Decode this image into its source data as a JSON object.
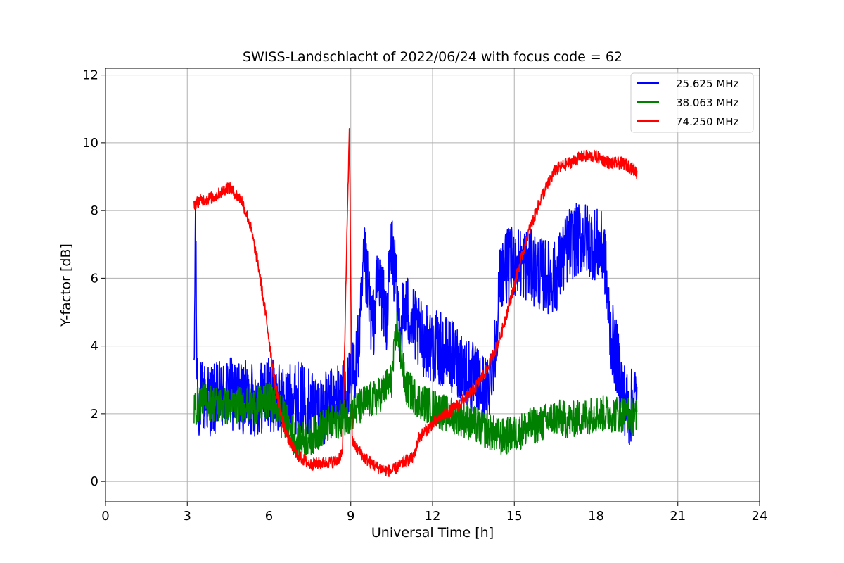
{
  "chart_data": {
    "type": "line",
    "title": "SWISS-Landschlacht of 2022/06/24 with focus code = 62",
    "xlabel": "Universal Time [h]",
    "ylabel": "Y-factor [dB]",
    "xlim": [
      0,
      24
    ],
    "ylim": [
      -0.6,
      12.2
    ],
    "xticks": [
      0,
      3,
      6,
      9,
      12,
      15,
      18,
      21,
      24
    ],
    "yticks": [
      0,
      2,
      4,
      6,
      8,
      10,
      12
    ],
    "xtick_labels": [
      "0",
      "3",
      "6",
      "9",
      "12",
      "15",
      "18",
      "21",
      "24"
    ],
    "ytick_labels": [
      "0",
      "2",
      "4",
      "6",
      "8",
      "10",
      "12"
    ],
    "grid": true,
    "legend_position": "top-right",
    "series": [
      {
        "name": "25.625 MHz",
        "color": "#0000ff",
        "x": [
          3.25,
          3.3,
          3.35,
          3.4,
          3.5,
          4.0,
          4.5,
          5.0,
          5.5,
          6.0,
          6.5,
          7.0,
          7.5,
          8.0,
          8.5,
          9.0,
          9.3,
          9.5,
          9.8,
          10.0,
          10.3,
          10.5,
          10.8,
          11.0,
          11.5,
          12.0,
          12.5,
          13.0,
          13.5,
          14.0,
          14.3,
          14.5,
          15.0,
          15.5,
          16.0,
          16.5,
          17.0,
          17.5,
          18.0,
          18.3,
          18.5,
          18.8,
          19.0,
          19.2,
          19.4,
          19.5
        ],
        "y": [
          2.6,
          7.9,
          3.5,
          2.3,
          2.5,
          2.4,
          2.6,
          2.5,
          2.4,
          2.6,
          2.3,
          2.5,
          2.3,
          2.1,
          2.4,
          2.8,
          4.0,
          6.5,
          4.5,
          6.0,
          4.8,
          7.0,
          4.6,
          5.2,
          4.3,
          4.0,
          3.8,
          3.5,
          3.0,
          2.6,
          4.0,
          6.2,
          6.5,
          6.4,
          6.1,
          6.0,
          7.0,
          7.2,
          7.0,
          6.8,
          4.5,
          3.5,
          2.6,
          2.0,
          2.5,
          2.4
        ]
      },
      {
        "name": "38.063 MHz",
        "color": "#008000",
        "x": [
          3.25,
          3.5,
          4.0,
          4.5,
          5.0,
          5.5,
          6.0,
          6.5,
          7.0,
          7.5,
          8.0,
          8.5,
          9.0,
          9.5,
          10.0,
          10.5,
          10.7,
          11.0,
          11.5,
          12.0,
          12.5,
          13.0,
          13.5,
          14.0,
          14.5,
          15.0,
          15.5,
          16.0,
          16.5,
          17.0,
          17.5,
          18.0,
          18.5,
          19.0,
          19.5
        ],
        "y": [
          2.1,
          2.4,
          2.3,
          2.2,
          2.3,
          2.2,
          2.4,
          2.0,
          1.2,
          1.3,
          1.6,
          1.8,
          2.0,
          2.3,
          2.5,
          3.0,
          4.6,
          2.8,
          2.4,
          2.2,
          2.0,
          1.9,
          1.7,
          1.5,
          1.3,
          1.4,
          1.6,
          1.7,
          1.9,
          1.8,
          1.9,
          2.0,
          2.0,
          2.0,
          1.9
        ]
      },
      {
        "name": "74.250 MHz",
        "color": "#ff0000",
        "x": [
          3.25,
          3.5,
          4.0,
          4.5,
          5.0,
          5.3,
          5.6,
          5.9,
          6.2,
          6.5,
          6.8,
          7.0,
          7.5,
          8.0,
          8.5,
          8.7,
          8.85,
          8.95,
          9.05,
          9.2,
          9.5,
          10.0,
          10.5,
          11.0,
          11.3,
          11.5,
          12.0,
          12.5,
          13.0,
          13.5,
          14.0,
          14.5,
          15.0,
          15.5,
          16.0,
          16.5,
          17.0,
          17.5,
          18.0,
          18.5,
          19.0,
          19.4,
          19.5
        ],
        "y": [
          8.2,
          8.3,
          8.4,
          8.7,
          8.3,
          7.6,
          6.4,
          4.8,
          3.0,
          1.7,
          1.1,
          0.8,
          0.5,
          0.55,
          0.6,
          0.9,
          7.0,
          10.4,
          1.2,
          1.0,
          0.7,
          0.4,
          0.3,
          0.6,
          0.7,
          1.3,
          1.7,
          2.0,
          2.3,
          2.7,
          3.3,
          4.3,
          5.8,
          7.3,
          8.4,
          9.2,
          9.4,
          9.6,
          9.6,
          9.4,
          9.4,
          9.2,
          9.1
        ]
      }
    ]
  }
}
